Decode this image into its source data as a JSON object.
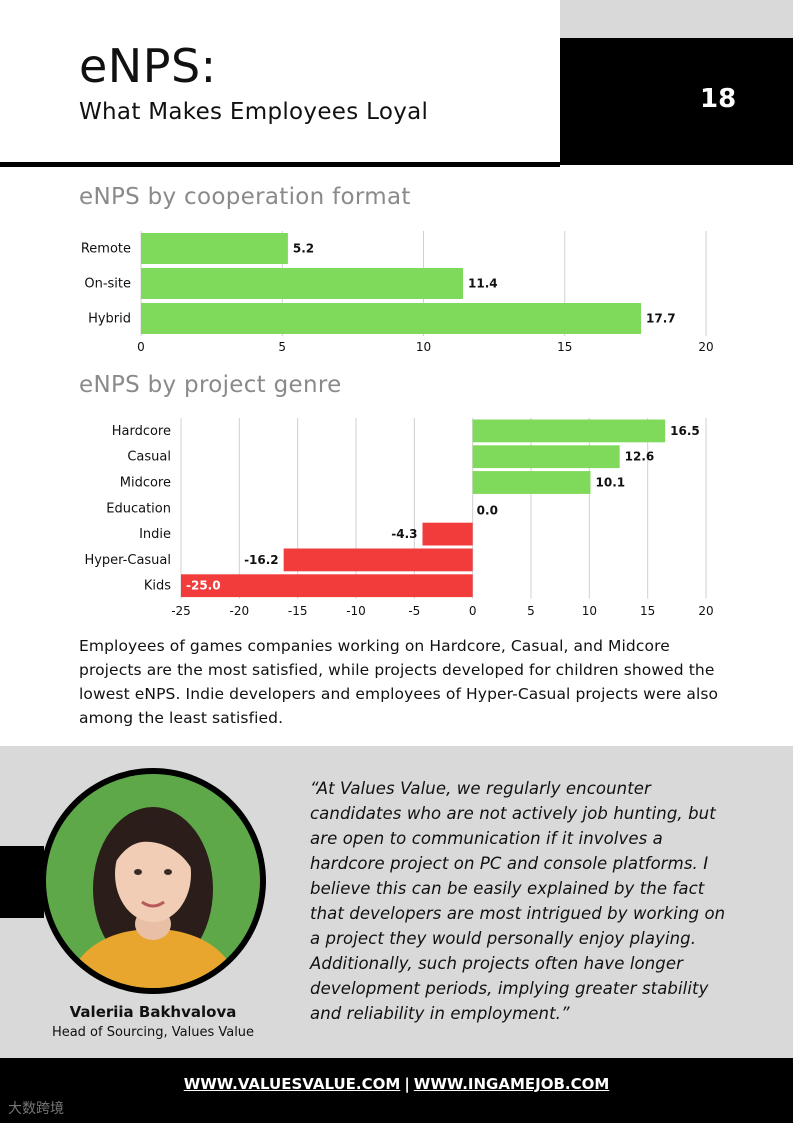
{
  "header": {
    "title": "eNPS:",
    "subtitle": "What Makes Employees Loyal",
    "page_number": "18"
  },
  "sections": {
    "format_title": "eNPS by cooperation format",
    "genre_title": "eNPS by project genre"
  },
  "colors": {
    "positive": "#7fd95a",
    "negative": "#f23b3b",
    "grid": "#d0d0d0"
  },
  "chart_data": [
    {
      "type": "bar",
      "orientation": "horizontal",
      "title": "eNPS by cooperation format",
      "categories": [
        "Remote",
        "On-site",
        "Hybrid"
      ],
      "values": [
        5.2,
        11.4,
        17.7
      ],
      "data_labels": [
        "5.2",
        "11.4",
        "17.7"
      ],
      "xlim": [
        0,
        20
      ],
      "x_ticks": [
        0,
        5,
        10,
        15,
        20
      ],
      "grid": true
    },
    {
      "type": "bar",
      "orientation": "horizontal",
      "title": "eNPS by project genre",
      "categories": [
        "Hardcore",
        "Casual",
        "Midcore",
        "Education",
        "Indie",
        "Hyper-Casual",
        "Kids"
      ],
      "values": [
        16.5,
        12.6,
        10.1,
        0.0,
        -4.3,
        -16.2,
        -25.0
      ],
      "data_labels": [
        "16.5",
        "12.6",
        "10.1",
        "0.0",
        "-4.3",
        "-16.2",
        "-25.0"
      ],
      "xlim": [
        -25,
        20
      ],
      "x_ticks": [
        -25,
        -20,
        -15,
        -10,
        -5,
        0,
        5,
        10,
        15,
        20
      ],
      "grid": true
    }
  ],
  "summary": "Employees of games companies working on Hardcore, Casual, and Midcore projects are the most satisfied, while projects developed for children showed the lowest eNPS. Indie developers and employees of Hyper-Casual projects were also among the least satisfied.",
  "quote": {
    "text": "“At Values Value, we regularly encounter candidates who are not actively job hunting, but are open to communication if it involves a hardcore project on PC and console platforms. I believe this can be easily explained by the fact that developers are most intrigued by working on a project they would personally enjoy playing. Additionally, such projects often have longer development periods, implying greater stability and reliability in employment.”",
    "name": "Valeriia Bakhvalova",
    "role": "Head of Sourcing, Values Value"
  },
  "footer": {
    "link1": "WWW.VALUESVALUE.COM",
    "separator": "|",
    "link2": "WWW.INGAMEJOB.COM"
  },
  "watermark": "大数跨境"
}
